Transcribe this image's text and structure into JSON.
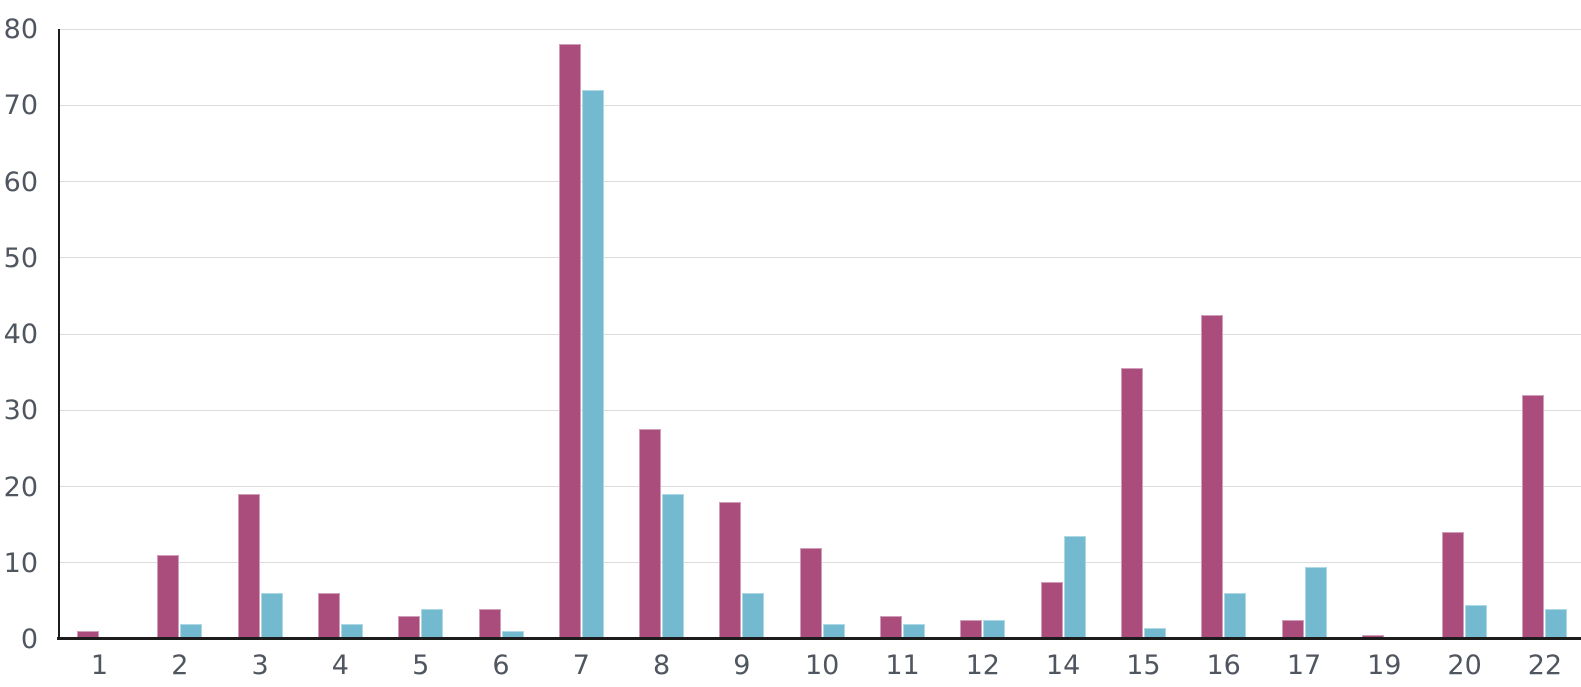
{
  "chart_data": {
    "type": "bar",
    "title": "",
    "xlabel": "",
    "ylabel": "",
    "categories": [
      "1",
      "2",
      "3",
      "4",
      "5",
      "6",
      "7",
      "8",
      "9",
      "10",
      "11",
      "12",
      "14",
      "15",
      "16",
      "17",
      "19",
      "20",
      "22"
    ],
    "series": [
      {
        "name": "pink-series",
        "color": "#aa4d7c",
        "edge_color": "#cf9fb9",
        "values": [
          1,
          11,
          19,
          6,
          3,
          4,
          78,
          27.5,
          18,
          12,
          3,
          2.5,
          7.5,
          35.5,
          42.5,
          2.5,
          0.5,
          14,
          32
        ]
      },
      {
        "name": "blue-series",
        "color": "#73b9cf",
        "edge_color": "#aed8e3",
        "values": [
          0,
          2,
          6,
          2,
          4,
          1,
          72,
          19,
          6,
          2,
          2,
          2.5,
          13.5,
          1.5,
          6,
          9.5,
          0,
          4.5,
          4
        ]
      }
    ],
    "ylim": [
      0,
      80
    ],
    "yticks": [
      0,
      10,
      20,
      30,
      40,
      50,
      60,
      70,
      80
    ],
    "grid": "horizontal",
    "legend": "none",
    "colors": {
      "gridline": "#dcdcdc",
      "axis": "#1c1c1c",
      "tick_label": "#50565f",
      "background": "#ffffff"
    }
  }
}
